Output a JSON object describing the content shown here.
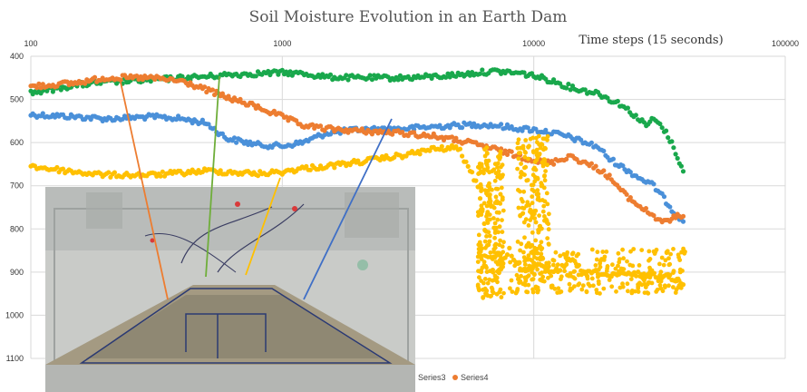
{
  "chart_data": {
    "type": "scatter",
    "title": "Soil Moisture Evolution in an Earth Dam",
    "xlabel": "Time steps (15 seconds)",
    "ylabel": "",
    "x_scale": "log",
    "xlim": [
      100,
      100000
    ],
    "x_ticks": [
      "100",
      "1000",
      "10000",
      "100000"
    ],
    "ylim": [
      400,
      1100
    ],
    "y_reversed": true,
    "y_ticks": [
      "400",
      "500",
      "600",
      "700",
      "800",
      "900",
      "1000",
      "1100"
    ],
    "grid": true,
    "legend_position": "bottom",
    "legend_visible": [
      "Series3",
      "Series4"
    ],
    "inset_photo": "earth-dam-model-with-sensors",
    "series": [
      {
        "name": "",
        "color": "#4a90d9",
        "x": [
          100,
          150,
          200,
          300,
          400,
          500,
          600,
          800,
          1000,
          1200,
          1500,
          2000,
          3000,
          4000,
          5000,
          6000,
          7000,
          8000,
          9000,
          10000,
          12000,
          14000,
          16000,
          18000,
          20000,
          23000,
          26000,
          30000,
          33000,
          36000,
          40000
        ],
        "y": [
          535,
          540,
          545,
          540,
          545,
          555,
          590,
          605,
          608,
          600,
          578,
          570,
          568,
          563,
          560,
          558,
          560,
          565,
          568,
          570,
          578,
          588,
          600,
          610,
          638,
          660,
          680,
          700,
          730,
          760,
          785
        ]
      },
      {
        "name": "",
        "color": "#19a84c",
        "x": [
          100,
          150,
          200,
          300,
          400,
          500,
          600,
          800,
          1000,
          1200,
          1500,
          2000,
          3000,
          4000,
          5000,
          6000,
          7000,
          8000,
          9000,
          10000,
          12000,
          14000,
          16000,
          18000,
          20000,
          22000,
          25000,
          28000,
          30000,
          33000,
          36000,
          40000
        ],
        "y": [
          485,
          467,
          460,
          455,
          450,
          447,
          443,
          440,
          438,
          440,
          448,
          450,
          450,
          447,
          443,
          438,
          435,
          437,
          440,
          445,
          458,
          472,
          480,
          485,
          500,
          510,
          535,
          560,
          545,
          570,
          610,
          680
        ]
      },
      {
        "name": "Series3",
        "color": "#ed7d31",
        "x": [
          100,
          150,
          200,
          300,
          400,
          500,
          600,
          800,
          1000,
          1200,
          1500,
          2000,
          3000,
          4000,
          5000,
          6000,
          7000,
          8000,
          9000,
          10000,
          11000,
          12000,
          14000,
          16000,
          18000,
          20000,
          23000,
          26000,
          30000,
          33000,
          36000,
          40000
        ],
        "y": [
          470,
          462,
          450,
          450,
          458,
          478,
          495,
          518,
          540,
          560,
          568,
          573,
          578,
          585,
          595,
          605,
          615,
          625,
          633,
          640,
          648,
          645,
          630,
          648,
          660,
          680,
          720,
          745,
          770,
          785,
          775,
          765
        ]
      },
      {
        "name": "Series4",
        "color": "#ffc000",
        "x": [
          100,
          150,
          200,
          300,
          400,
          500,
          600,
          800,
          1000,
          1200,
          1500,
          2000,
          3000,
          4000,
          5000,
          6000,
          7000,
          8000,
          9000,
          10000,
          12000,
          14000,
          16000,
          18000,
          20000,
          23000,
          26000,
          30000,
          33000,
          36000,
          40000
        ],
        "y": [
          655,
          668,
          675,
          675,
          670,
          665,
          668,
          672,
          668,
          660,
          655,
          645,
          630,
          615,
          612,
          700,
          920,
          850,
          900,
          880,
          905,
          870,
          905,
          900,
          910,
          905,
          905,
          910,
          905,
          915,
          935
        ]
      }
    ],
    "scatter_clouds": [
      {
        "series": "Series4",
        "x_range": [
          6000,
          7600
        ],
        "y_range": [
          610,
          960
        ],
        "count": 220
      },
      {
        "series": "Series4",
        "x_range": [
          8600,
          11500
        ],
        "y_range": [
          585,
          925
        ],
        "count": 200
      },
      {
        "series": "Series4",
        "x_range": [
          8000,
          40000
        ],
        "y_range": [
          845,
          950
        ],
        "count": 260
      }
    ]
  }
}
